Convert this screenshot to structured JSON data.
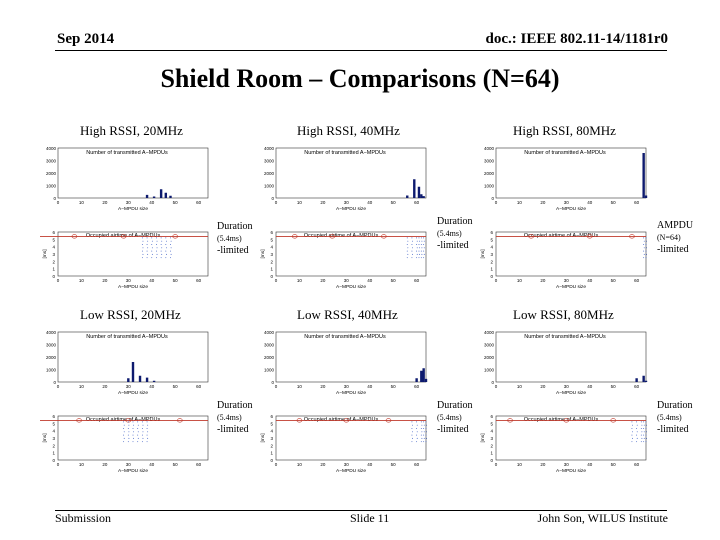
{
  "header": {
    "date": "Sep 2014",
    "doc_id": "doc.: IEEE 802.11-14/1181r0"
  },
  "title": "Shield Room – Comparisons (N=64)",
  "panels": [
    {
      "label": "High RSSI, 20MHz",
      "note_title": "Duration",
      "note_detail": "(5.4ms)",
      "note_tail": "-limited",
      "top_title": "Number of transmitted A−MPDUs",
      "top_xlabel": "A−MPDU size",
      "bottom_title": "Occupied airtime of A−MPDUs",
      "bottom_xlabel": "A−MPDU size",
      "bottom_ylabel": "[ms]",
      "top_ticks_y": [
        "4000",
        "3000",
        "2000",
        "1000",
        "0"
      ],
      "bottom_ticks_y": [
        "6",
        "5",
        "4",
        "3",
        "2",
        "1",
        "0"
      ],
      "ticks_x": [
        "0",
        "10",
        "20",
        "30",
        "40",
        "50",
        "60"
      ]
    },
    {
      "label": "High RSSI, 40MHz",
      "note_title": "Duration",
      "note_detail": "(5.4ms)",
      "note_tail": "-limited",
      "top_title": "Number of transmitted A−MPDUs",
      "top_xlabel": "A−MPDU size",
      "bottom_title": "Occupied airtime of A−MPDUs",
      "bottom_xlabel": "A−MPDU size",
      "bottom_ylabel": "[ms]",
      "top_ticks_y": [
        "4000",
        "3000",
        "2000",
        "1000",
        "0"
      ],
      "bottom_ticks_y": [
        "6",
        "5",
        "4",
        "3",
        "2",
        "1",
        "0"
      ],
      "ticks_x": [
        "0",
        "10",
        "20",
        "30",
        "40",
        "50",
        "60"
      ]
    },
    {
      "label": "High RSSI, 80MHz",
      "note_title": "AMPDU",
      "note_detail": "(N=64)",
      "note_tail": "-limited",
      "top_title": "Number of transmitted A−MPDUs",
      "top_xlabel": "A−MPDU size",
      "bottom_title": "Occupied airtime of A−MPDUs",
      "bottom_xlabel": "A−MPDU size",
      "bottom_ylabel": "[ms]",
      "top_ticks_y": [
        "4000",
        "3000",
        "2000",
        "1000",
        "0"
      ],
      "bottom_ticks_y": [
        "6",
        "5",
        "4",
        "3",
        "2",
        "1",
        "0"
      ],
      "ticks_x": [
        "0",
        "10",
        "20",
        "30",
        "40",
        "50",
        "60"
      ]
    },
    {
      "label": "Low RSSI, 20MHz",
      "note_title": "Duration",
      "note_detail": "(5.4ms)",
      "note_tail": "-limited",
      "top_title": "Number of transmitted A−MPDUs",
      "top_xlabel": "A−MPDU size",
      "bottom_title": "Occupied airtime of A−MPDUs",
      "bottom_xlabel": "A−MPDU size",
      "bottom_ylabel": "[ms]",
      "top_ticks_y": [
        "4000",
        "3000",
        "2000",
        "1000",
        "0"
      ],
      "bottom_ticks_y": [
        "6",
        "5",
        "4",
        "3",
        "2",
        "1",
        "0"
      ],
      "ticks_x": [
        "0",
        "10",
        "20",
        "30",
        "40",
        "50",
        "60"
      ]
    },
    {
      "label": "Low RSSI, 40MHz",
      "note_title": "Duration",
      "note_detail": "(5.4ms)",
      "note_tail": "-limited",
      "top_title": "Number of transmitted A−MPDUs",
      "top_xlabel": "A−MPDU size",
      "bottom_title": "Occupied airtime of A−MPDUs",
      "bottom_xlabel": "A−MPDU size",
      "bottom_ylabel": "[ms]",
      "top_ticks_y": [
        "4000",
        "3000",
        "2000",
        "1000",
        "0"
      ],
      "bottom_ticks_y": [
        "6",
        "5",
        "4",
        "3",
        "2",
        "1",
        "0"
      ],
      "ticks_x": [
        "0",
        "10",
        "20",
        "30",
        "40",
        "50",
        "60"
      ]
    },
    {
      "label": "Low RSSI, 80MHz",
      "note_title": "Duration",
      "note_detail": "(5.4ms)",
      "note_tail": "-limited",
      "top_title": "Number of transmitted A−MPDUs",
      "top_xlabel": "A−MPDU size",
      "bottom_title": "Occupied airtime of A−MPDUs",
      "bottom_xlabel": "A−MPDU size",
      "bottom_ylabel": "[ms]",
      "top_ticks_y": [
        "4000",
        "3000",
        "2000",
        "1000",
        "0"
      ],
      "bottom_ticks_y": [
        "6",
        "5",
        "4",
        "3",
        "2",
        "1",
        "0"
      ],
      "ticks_x": [
        "0",
        "10",
        "20",
        "30",
        "40",
        "50",
        "60"
      ]
    }
  ],
  "chart_data": [
    {
      "type": "bar",
      "panel": "High RSSI, 20MHz",
      "title": "Number of transmitted A−MPDUs",
      "xlabel": "A−MPDU size",
      "xlim": [
        0,
        64
      ],
      "ylim": [
        0,
        4000
      ],
      "x": [
        38,
        41,
        44,
        46,
        48
      ],
      "values": [
        250,
        120,
        700,
        420,
        180
      ]
    },
    {
      "type": "bar",
      "panel": "High RSSI, 40MHz",
      "title": "Number of transmitted A−MPDUs",
      "xlabel": "A−MPDU size",
      "xlim": [
        0,
        64
      ],
      "ylim": [
        0,
        4000
      ],
      "x": [
        56,
        59,
        61,
        62,
        63
      ],
      "values": [
        200,
        1500,
        900,
        300,
        150
      ]
    },
    {
      "type": "bar",
      "panel": "High RSSI, 80MHz",
      "title": "Number of transmitted A−MPDUs",
      "xlabel": "A−MPDU size",
      "xlim": [
        0,
        64
      ],
      "ylim": [
        0,
        4000
      ],
      "x": [
        63,
        64
      ],
      "values": [
        3600,
        200
      ]
    },
    {
      "type": "bar",
      "panel": "Low RSSI, 20MHz",
      "title": "Number of transmitted A−MPDUs",
      "xlabel": "A−MPDU size",
      "xlim": [
        0,
        64
      ],
      "ylim": [
        0,
        4000
      ],
      "x": [
        30,
        32,
        35,
        38,
        41
      ],
      "values": [
        300,
        1600,
        500,
        350,
        100
      ]
    },
    {
      "type": "bar",
      "panel": "Low RSSI, 40MHz",
      "title": "Number of transmitted A−MPDUs",
      "xlabel": "A−MPDU size",
      "xlim": [
        0,
        64
      ],
      "ylim": [
        0,
        4000
      ],
      "x": [
        60,
        62,
        63,
        64
      ],
      "values": [
        300,
        900,
        1100,
        250
      ]
    },
    {
      "type": "bar",
      "panel": "Low RSSI, 80MHz",
      "title": "Number of transmitted A−MPDUs",
      "xlabel": "A−MPDU size",
      "xlim": [
        0,
        64
      ],
      "ylim": [
        0,
        4000
      ],
      "x": [
        60,
        63,
        64
      ],
      "values": [
        300,
        500,
        100
      ]
    }
  ],
  "footer": {
    "left": "Submission",
    "center": "Slide 11",
    "right": "John Son, WILUS Institute"
  }
}
